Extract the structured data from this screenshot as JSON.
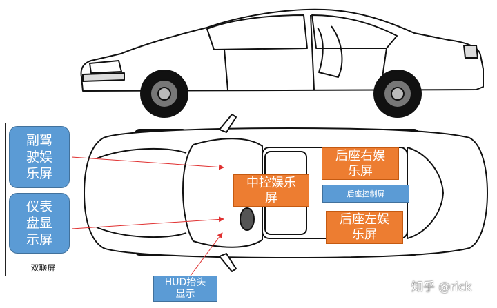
{
  "labels": {
    "passenger_screen": "副驾\n驶娱\n乐屏",
    "instrument_screen": "仪表\n盘显\n示屏",
    "dual_screen": "双联屏",
    "center_screen": "中控娱乐\n屏",
    "rear_right_screen": "后座右娱\n乐屏",
    "rear_control_screen": "后座控制屏",
    "rear_left_screen": "后座左娱\n乐屏",
    "hud": "HUD抬头\n显示"
  },
  "watermark": "知乎 @rick",
  "colors": {
    "blue": "#5b9bd5",
    "orange": "#ed7d31",
    "arrow": "#e03030"
  }
}
